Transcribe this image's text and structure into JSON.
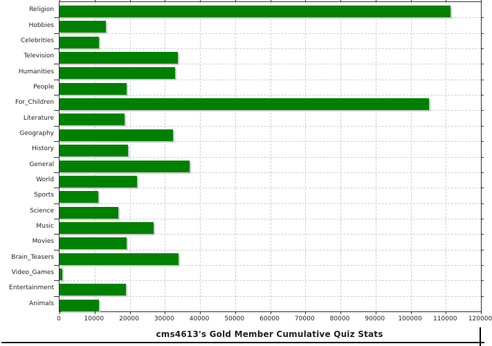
{
  "title": "cms4613's Gold Member Cumulative Quiz Stats",
  "chart_data": {
    "type": "bar",
    "orientation": "horizontal",
    "title": "cms4613's Gold Member Cumulative Quiz Stats",
    "categories": [
      "Religion",
      "Hobbies",
      "Celebrities",
      "Television",
      "Humanities",
      "People",
      "For_Children",
      "Literature",
      "Geography",
      "History",
      "General",
      "World",
      "Sports",
      "Science",
      "Music",
      "Movies",
      "Brain_Teasers",
      "Video_Games",
      "Entertainment",
      "Animals"
    ],
    "values": [
      111300,
      13300,
      11200,
      33600,
      33000,
      19200,
      105300,
      18500,
      32300,
      19600,
      37100,
      22000,
      11000,
      16700,
      26800,
      19200,
      33800,
      700,
      18900,
      11200
    ],
    "xlim": [
      0,
      120000
    ],
    "x_ticks": [
      0,
      10000,
      20000,
      30000,
      40000,
      50000,
      60000,
      70000,
      80000,
      90000,
      100000,
      110000,
      120000
    ],
    "xlabel": "",
    "ylabel": "",
    "grid": "both-dashed",
    "legend": "none",
    "bar_color": "#008000",
    "shadow_color": "#c9c9c9",
    "gridline_color": "#c9ced3",
    "border_color": "#333333",
    "text_color": "#222222"
  }
}
